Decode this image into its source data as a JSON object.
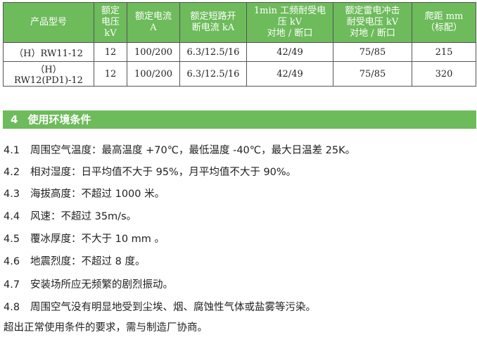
{
  "table": {
    "headers": [
      "产品型号",
      "额定\n电压\nkV",
      "额定电流\nA",
      "额定短路开\n断电流 kA",
      "1min 工频耐受电\n压 kV\n对地 / 断口",
      "额定雷电冲击\n耐受电压 kV\n对地 / 断口",
      "爬距 mm\n（标配）"
    ],
    "rows": [
      [
        "（H）RW11-12",
        "12",
        "100/200",
        "6.3/12.5/16",
        "42/49",
        "75/85",
        "215"
      ],
      [
        "（H）RW12(PD1)-12",
        "12",
        "100/200",
        "6.3/12.5/16",
        "42/49",
        "75/85",
        "320"
      ]
    ]
  },
  "section": {
    "number": "4",
    "title": "使用环境条件"
  },
  "items": [
    {
      "n": "4.1",
      "text": "周围空气温度：最高温度 +70℃，最低温度 -40℃，最大日温差 25K。"
    },
    {
      "n": "4.2",
      "text": "相对湿度：日平均值不大于 95%，月平均值不大于 90%。"
    },
    {
      "n": "4.3",
      "text": "海拔高度：不超过 1000 米。"
    },
    {
      "n": "4.4",
      "text": "风速：不超过 35m/s。"
    },
    {
      "n": "4.5",
      "text": "覆冰厚度：不大于 10 mm 。"
    },
    {
      "n": "4.6",
      "text": "地震烈度：不超过 8 度。"
    },
    {
      "n": "4.7",
      "text": "安装场所应无频繁的剧烈振动。"
    },
    {
      "n": "4.8",
      "text": "周围空气没有明显地受到尘埃、烟、腐蚀性气体或盐雾等污染。"
    }
  ],
  "note": "超出正常使用条件的要求，需与制造厂协商。"
}
